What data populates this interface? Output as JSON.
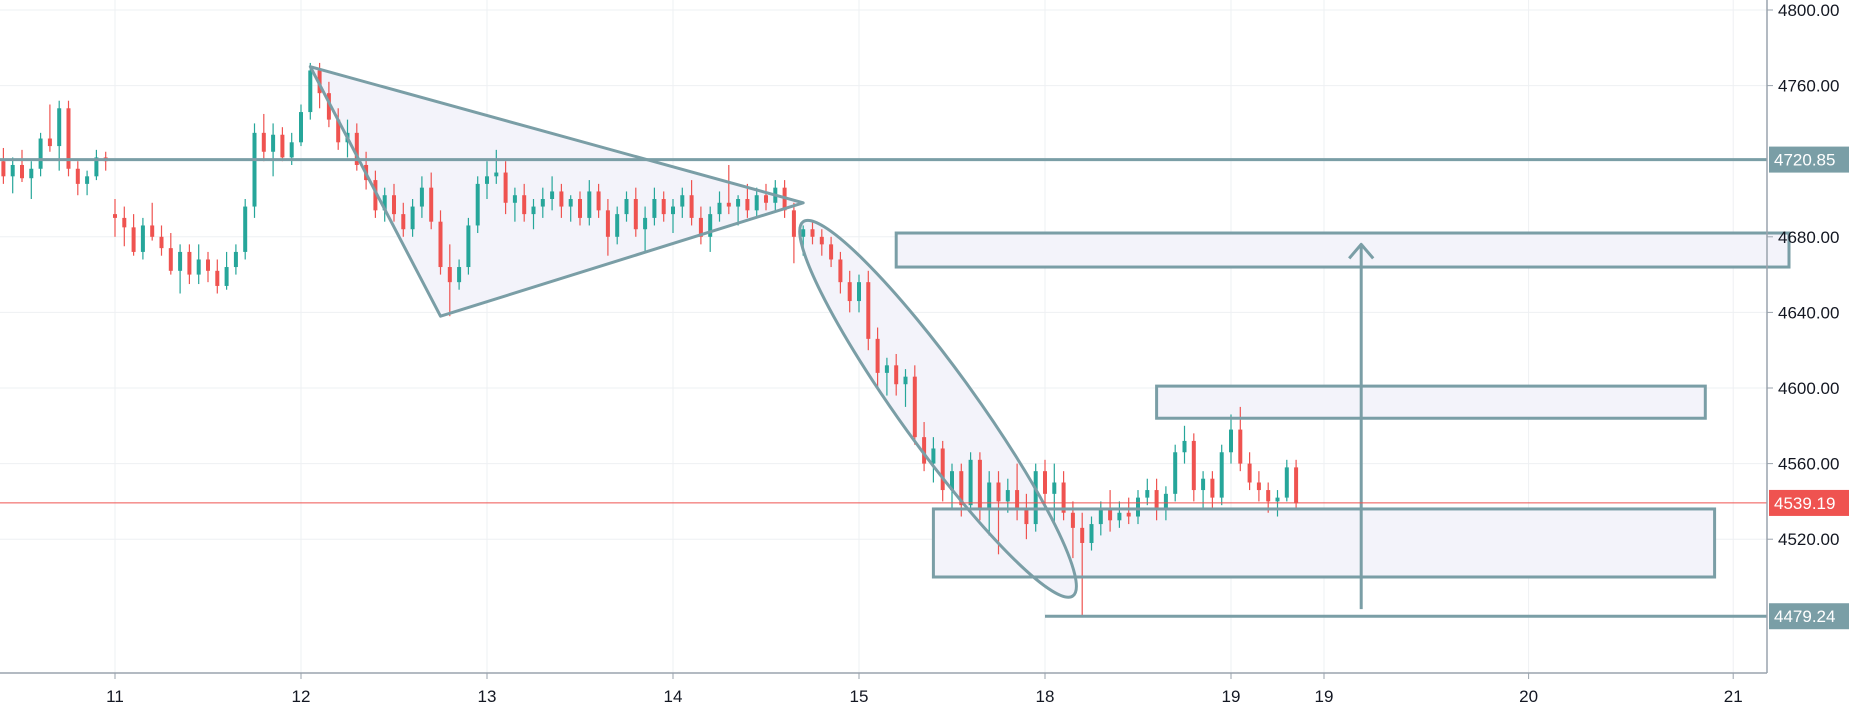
{
  "chart_data": {
    "type": "candlestick",
    "title": "",
    "xlabel": "",
    "ylabel": "",
    "ylim": [
      4446,
      4800
    ],
    "y_ticks": [
      "4800.00",
      "4760.00",
      "4680.00",
      "4640.00",
      "4600.00",
      "4560.00",
      "4520.00"
    ],
    "x_ticks": [
      {
        "label": "11",
        "day": 11
      },
      {
        "label": "12",
        "day": 12
      },
      {
        "label": "13",
        "day": 13
      },
      {
        "label": "14",
        "day": 14
      },
      {
        "label": "15",
        "day": 15
      },
      {
        "label": "18",
        "day": 16
      },
      {
        "label": "19",
        "day": 17
      },
      {
        "label": "19",
        "day": 17.5
      },
      {
        "label": "20",
        "day": 18.6
      },
      {
        "label": "21",
        "day": 19.7
      }
    ],
    "price_lines": [
      {
        "name": "resistance",
        "value": 4720.85,
        "label": "4720.85",
        "color": "#7a9ea6"
      },
      {
        "name": "last-price",
        "value": 4539.19,
        "label": "4539.19",
        "color": "#ef5350"
      },
      {
        "name": "low",
        "value": 4479.24,
        "label": "4479.24",
        "color": "#7a9ea6"
      }
    ],
    "colors": {
      "up": "#26a69a",
      "down": "#ef5350",
      "drawing": "#7a9ea6",
      "fill": "#f3f3fa",
      "grid": "#eef0f3"
    },
    "candles": [
      [
        10.35,
        4715,
        4725,
        4705,
        4720
      ],
      [
        10.4,
        4720,
        4727,
        4708,
        4712
      ],
      [
        10.45,
        4712,
        4722,
        4703,
        4718
      ],
      [
        10.5,
        4718,
        4726,
        4709,
        4711
      ],
      [
        10.55,
        4711,
        4720,
        4700,
        4716
      ],
      [
        10.6,
        4716,
        4735,
        4712,
        4732
      ],
      [
        10.65,
        4732,
        4750,
        4725,
        4728
      ],
      [
        10.7,
        4728,
        4752,
        4715,
        4748
      ],
      [
        10.75,
        4748,
        4752,
        4712,
        4716
      ],
      [
        10.8,
        4716,
        4720,
        4702,
        4708
      ],
      [
        10.85,
        4708,
        4715,
        4702,
        4712
      ],
      [
        10.9,
        4712,
        4726,
        4710,
        4722
      ],
      [
        10.95,
        4722,
        4725,
        4715,
        4720
      ],
      [
        11.0,
        4692,
        4700,
        4680,
        4690
      ],
      [
        11.05,
        4690,
        4696,
        4675,
        4685
      ],
      [
        11.1,
        4685,
        4692,
        4670,
        4672
      ],
      [
        11.15,
        4672,
        4690,
        4668,
        4686
      ],
      [
        11.2,
        4686,
        4698,
        4678,
        4680
      ],
      [
        11.25,
        4680,
        4686,
        4670,
        4674
      ],
      [
        11.3,
        4674,
        4682,
        4660,
        4662
      ],
      [
        11.35,
        4662,
        4676,
        4650,
        4672
      ],
      [
        11.4,
        4672,
        4676,
        4655,
        4660
      ],
      [
        11.45,
        4660,
        4676,
        4655,
        4668
      ],
      [
        11.5,
        4668,
        4672,
        4656,
        4662
      ],
      [
        11.55,
        4662,
        4668,
        4650,
        4654
      ],
      [
        11.6,
        4654,
        4672,
        4652,
        4664
      ],
      [
        11.65,
        4664,
        4676,
        4660,
        4672
      ],
      [
        11.7,
        4672,
        4700,
        4668,
        4696
      ],
      [
        11.75,
        4696,
        4740,
        4690,
        4735
      ],
      [
        11.8,
        4735,
        4745,
        4720,
        4725
      ],
      [
        11.85,
        4725,
        4740,
        4712,
        4734
      ],
      [
        11.9,
        4734,
        4738,
        4720,
        4722
      ],
      [
        11.95,
        4722,
        4735,
        4718,
        4730
      ],
      [
        12.0,
        4730,
        4750,
        4728,
        4746
      ],
      [
        12.05,
        4746,
        4772,
        4742,
        4768
      ],
      [
        12.1,
        4768,
        4772,
        4748,
        4756
      ],
      [
        12.15,
        4756,
        4762,
        4738,
        4742
      ],
      [
        12.2,
        4742,
        4748,
        4726,
        4730
      ],
      [
        12.25,
        4730,
        4742,
        4722,
        4735
      ],
      [
        12.3,
        4735,
        4740,
        4715,
        4718
      ],
      [
        12.35,
        4718,
        4725,
        4705,
        4710
      ],
      [
        12.4,
        4710,
        4715,
        4690,
        4694
      ],
      [
        12.45,
        4694,
        4706,
        4688,
        4702
      ],
      [
        12.5,
        4702,
        4708,
        4688,
        4692
      ],
      [
        12.55,
        4692,
        4698,
        4680,
        4684
      ],
      [
        12.6,
        4684,
        4700,
        4680,
        4696
      ],
      [
        12.65,
        4696,
        4712,
        4690,
        4706
      ],
      [
        12.7,
        4706,
        4714,
        4684,
        4688
      ],
      [
        12.75,
        4688,
        4694,
        4660,
        4664
      ],
      [
        12.8,
        4664,
        4676,
        4638,
        4656
      ],
      [
        12.85,
        4656,
        4668,
        4652,
        4664
      ],
      [
        12.9,
        4664,
        4690,
        4660,
        4686
      ],
      [
        12.95,
        4686,
        4712,
        4682,
        4708
      ],
      [
        13.0,
        4708,
        4720,
        4700,
        4712
      ],
      [
        13.05,
        4712,
        4726,
        4708,
        4714
      ],
      [
        13.1,
        4714,
        4720,
        4692,
        4698
      ],
      [
        13.15,
        4698,
        4706,
        4688,
        4702
      ],
      [
        13.2,
        4702,
        4708,
        4688,
        4692
      ],
      [
        13.25,
        4692,
        4700,
        4684,
        4696
      ],
      [
        13.3,
        4696,
        4706,
        4690,
        4700
      ],
      [
        13.35,
        4700,
        4712,
        4694,
        4704
      ],
      [
        13.4,
        4704,
        4708,
        4690,
        4696
      ],
      [
        13.45,
        4696,
        4702,
        4688,
        4700
      ],
      [
        13.5,
        4700,
        4704,
        4686,
        4690
      ],
      [
        13.55,
        4690,
        4710,
        4686,
        4704
      ],
      [
        13.6,
        4704,
        4708,
        4690,
        4694
      ],
      [
        13.65,
        4694,
        4700,
        4670,
        4680
      ],
      [
        13.7,
        4680,
        4696,
        4676,
        4692
      ],
      [
        13.75,
        4692,
        4704,
        4688,
        4700
      ],
      [
        13.8,
        4700,
        4706,
        4680,
        4684
      ],
      [
        13.85,
        4684,
        4696,
        4672,
        4690
      ],
      [
        13.9,
        4690,
        4706,
        4686,
        4700
      ],
      [
        13.95,
        4700,
        4704,
        4688,
        4692
      ],
      [
        14.0,
        4692,
        4700,
        4682,
        4696
      ],
      [
        14.05,
        4696,
        4706,
        4690,
        4702
      ],
      [
        14.1,
        4702,
        4710,
        4686,
        4690
      ],
      [
        14.15,
        4690,
        4696,
        4676,
        4680
      ],
      [
        14.2,
        4680,
        4696,
        4672,
        4692
      ],
      [
        14.25,
        4692,
        4704,
        4688,
        4698
      ],
      [
        14.3,
        4698,
        4718,
        4692,
        4696
      ],
      [
        14.35,
        4696,
        4702,
        4686,
        4700
      ],
      [
        14.4,
        4700,
        4708,
        4690,
        4694
      ],
      [
        14.45,
        4694,
        4706,
        4690,
        4702
      ],
      [
        14.5,
        4702,
        4708,
        4694,
        4698
      ],
      [
        14.55,
        4698,
        4710,
        4694,
        4706
      ],
      [
        14.6,
        4706,
        4710,
        4690,
        4694
      ],
      [
        14.65,
        4694,
        4698,
        4666,
        4680
      ],
      [
        14.7,
        4680,
        4686,
        4670,
        4684
      ],
      [
        14.75,
        4684,
        4688,
        4676,
        4680
      ],
      [
        14.8,
        4680,
        4684,
        4670,
        4676
      ],
      [
        14.85,
        4676,
        4680,
        4664,
        4668
      ],
      [
        14.9,
        4668,
        4672,
        4650,
        4656
      ],
      [
        14.95,
        4656,
        4662,
        4640,
        4646
      ],
      [
        15.0,
        4646,
        4660,
        4640,
        4656
      ],
      [
        15.05,
        4656,
        4662,
        4620,
        4626
      ],
      [
        15.1,
        4626,
        4632,
        4600,
        4608
      ],
      [
        15.15,
        4608,
        4616,
        4596,
        4612
      ],
      [
        15.2,
        4612,
        4618,
        4596,
        4602
      ],
      [
        15.25,
        4602,
        4610,
        4590,
        4606
      ],
      [
        15.3,
        4606,
        4612,
        4570,
        4574
      ],
      [
        15.35,
        4574,
        4582,
        4556,
        4560
      ],
      [
        15.4,
        4560,
        4574,
        4550,
        4568
      ],
      [
        15.45,
        4568,
        4572,
        4540,
        4546
      ],
      [
        15.5,
        4546,
        4560,
        4536,
        4556
      ],
      [
        15.55,
        4556,
        4560,
        4532,
        4538
      ],
      [
        15.6,
        4538,
        4566,
        4536,
        4562
      ],
      [
        15.65,
        4562,
        4566,
        4530,
        4536
      ],
      [
        15.7,
        4536,
        4556,
        4522,
        4550
      ],
      [
        15.75,
        4550,
        4556,
        4512,
        4540
      ],
      [
        15.8,
        4540,
        4552,
        4534,
        4546
      ],
      [
        15.85,
        4546,
        4560,
        4530,
        4536
      ],
      [
        15.9,
        4536,
        4544,
        4520,
        4528
      ],
      [
        15.95,
        4528,
        4560,
        4524,
        4556
      ],
      [
        16.0,
        4556,
        4562,
        4538,
        4544
      ],
      [
        16.05,
        4544,
        4560,
        4528,
        4550
      ],
      [
        16.1,
        4550,
        4556,
        4530,
        4534
      ],
      [
        16.15,
        4534,
        4540,
        4510,
        4526
      ],
      [
        16.2,
        4526,
        4534,
        4479,
        4518
      ],
      [
        16.25,
        4518,
        4532,
        4514,
        4528
      ],
      [
        16.3,
        4528,
        4540,
        4522,
        4536
      ],
      [
        16.35,
        4536,
        4546,
        4524,
        4530
      ],
      [
        16.4,
        4530,
        4540,
        4526,
        4534
      ],
      [
        16.45,
        4534,
        4542,
        4528,
        4532
      ],
      [
        16.5,
        4532,
        4546,
        4528,
        4542
      ],
      [
        16.55,
        4542,
        4552,
        4538,
        4546
      ],
      [
        16.6,
        4546,
        4552,
        4530,
        4536
      ],
      [
        16.65,
        4536,
        4548,
        4530,
        4544
      ],
      [
        16.7,
        4544,
        4570,
        4540,
        4566
      ],
      [
        16.75,
        4566,
        4580,
        4560,
        4572
      ],
      [
        16.8,
        4572,
        4576,
        4540,
        4546
      ],
      [
        16.85,
        4546,
        4556,
        4536,
        4552
      ],
      [
        16.9,
        4552,
        4556,
        4536,
        4542
      ],
      [
        16.95,
        4542,
        4570,
        4538,
        4566
      ],
      [
        17.0,
        4566,
        4586,
        4560,
        4578
      ],
      [
        17.05,
        4578,
        4590,
        4556,
        4560
      ],
      [
        17.1,
        4560,
        4566,
        4546,
        4550
      ],
      [
        17.15,
        4550,
        4556,
        4540,
        4546
      ],
      [
        17.2,
        4546,
        4550,
        4534,
        4540
      ],
      [
        17.25,
        4540,
        4546,
        4532,
        4542
      ],
      [
        17.3,
        4542,
        4562,
        4540,
        4558
      ],
      [
        17.35,
        4558,
        4562,
        4536,
        4539
      ]
    ],
    "annotations": [
      {
        "type": "triangle",
        "points": [
          [
            12.05,
            4770
          ],
          [
            12.75,
            4638
          ],
          [
            14.7,
            4698
          ]
        ]
      },
      {
        "type": "ellipse",
        "from": [
          14.7,
          4688
        ],
        "to": [
          16.15,
          4490
        ]
      },
      {
        "type": "rect",
        "from": [
          15.2,
          4682
        ],
        "to": [
          20.0,
          4664
        ]
      },
      {
        "type": "rect",
        "from": [
          16.6,
          4601
        ],
        "to": [
          19.55,
          4584
        ]
      },
      {
        "type": "rect",
        "from": [
          15.4,
          4536
        ],
        "to": [
          19.6,
          4500
        ]
      },
      {
        "type": "arrow",
        "from": [
          17.7,
          4483
        ],
        "to": [
          17.7,
          4676
        ]
      },
      {
        "type": "hline-segment",
        "from": [
          16.0,
          4479.24
        ],
        "to": [
          20.1,
          4479.24
        ]
      }
    ]
  }
}
